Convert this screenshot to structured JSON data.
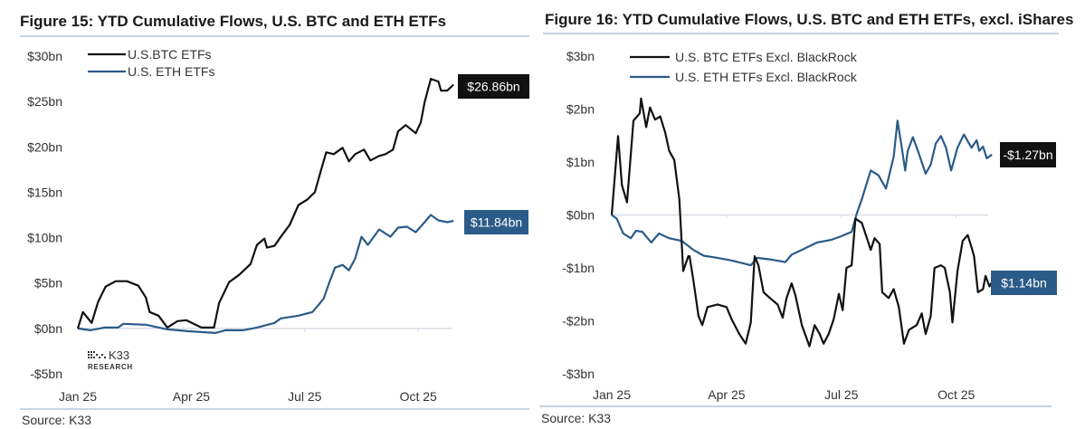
{
  "colors": {
    "btc": "#111111",
    "eth": "#2b5b88",
    "rule": "#8fa9c4",
    "zero": "#d9dee4"
  },
  "logo_text": "K33 RESEARCH",
  "chart_data": [
    {
      "type": "line",
      "title": "Figure 15: YTD Cumulative Flows, U.S. BTC and ETH ETFs",
      "source": "Source: K33",
      "ylim": [
        -5,
        30
      ],
      "yticks": [
        30,
        25,
        20,
        15,
        10,
        5,
        0,
        -5
      ],
      "ytick_labels": [
        "$30bn",
        "$25bn",
        "$20bn",
        "$15bn",
        "$10bn",
        "$5bn",
        "$0bn",
        "-$5bn"
      ],
      "xticks": [
        "2025-01-01",
        "2025-04-01",
        "2025-07-01",
        "2025-10-01"
      ],
      "xtick_labels": [
        "Jan 25",
        "Apr 25",
        "Jul 25",
        "Oct 25"
      ],
      "grid": false,
      "legend": "top-left",
      "series": [
        {
          "name": "U.S.BTC ETFs",
          "color": "#111111",
          "end_label": "$26.86bn",
          "x": [
            "2025-01-01",
            "2025-01-05",
            "2025-01-12",
            "2025-01-17",
            "2025-01-23",
            "2025-02-01",
            "2025-02-10",
            "2025-02-19",
            "2025-02-25",
            "2025-02-28",
            "2025-03-05",
            "2025-03-12",
            "2025-03-20",
            "2025-03-27",
            "2025-04-09",
            "2025-04-19",
            "2025-04-23",
            "2025-05-01",
            "2025-05-09",
            "2025-05-18",
            "2025-05-23",
            "2025-05-29",
            "2025-06-01",
            "2025-06-07",
            "2025-06-12",
            "2025-06-19",
            "2025-06-26",
            "2025-07-03",
            "2025-07-09",
            "2025-07-13",
            "2025-07-18",
            "2025-07-24",
            "2025-08-01",
            "2025-08-06",
            "2025-08-11",
            "2025-08-18",
            "2025-08-23",
            "2025-08-30",
            "2025-09-05",
            "2025-09-11",
            "2025-09-15",
            "2025-09-21",
            "2025-09-29",
            "2025-10-03",
            "2025-10-06",
            "2025-10-11",
            "2025-10-17",
            "2025-10-19",
            "2025-10-24",
            "2025-10-29"
          ],
          "y": [
            0,
            1.8,
            0.6,
            2.9,
            4.6,
            5.2,
            5.2,
            4.7,
            3.4,
            1.8,
            1.4,
            0.1,
            0.8,
            0.9,
            0.1,
            0.1,
            2.8,
            5.1,
            5.9,
            7.1,
            9.2,
            9.9,
            8.9,
            9.1,
            10.1,
            11.4,
            13.6,
            14.2,
            15.0,
            17.0,
            19.4,
            19.2,
            19.9,
            18.4,
            19.2,
            19.7,
            18.5,
            19.0,
            19.2,
            19.7,
            21.7,
            22.4,
            21.5,
            22.7,
            24.9,
            27.5,
            27.2,
            26.2,
            26.2,
            26.86
          ]
        },
        {
          "name": "U.S. ETH ETFs",
          "color": "#2b5b88",
          "end_label": "$11.84bn",
          "x": [
            "2025-01-01",
            "2025-01-11",
            "2025-01-22",
            "2025-02-03",
            "2025-02-07",
            "2025-02-25",
            "2025-03-12",
            "2025-03-28",
            "2025-04-20",
            "2025-04-28",
            "2025-05-12",
            "2025-05-23",
            "2025-06-07",
            "2025-06-12",
            "2025-06-26",
            "2025-07-07",
            "2025-07-12",
            "2025-07-16",
            "2025-07-20",
            "2025-07-25",
            "2025-08-01",
            "2025-08-06",
            "2025-08-11",
            "2025-08-16",
            "2025-08-21",
            "2025-08-30",
            "2025-09-09",
            "2025-09-15",
            "2025-09-22",
            "2025-09-29",
            "2025-10-06",
            "2025-10-11",
            "2025-10-17",
            "2025-10-24",
            "2025-10-29"
          ],
          "y": [
            0,
            -0.2,
            0.1,
            0.1,
            0.5,
            0.4,
            -0.1,
            -0.3,
            -0.5,
            -0.2,
            -0.2,
            0.1,
            0.6,
            1.1,
            1.4,
            1.8,
            2.6,
            3.3,
            4.9,
            6.7,
            7.0,
            6.4,
            7.7,
            10.1,
            9.2,
            10.9,
            10.1,
            11.1,
            11.2,
            10.6,
            11.7,
            12.5,
            11.9,
            11.7,
            11.84
          ]
        }
      ]
    },
    {
      "type": "line",
      "title": "Figure 16: YTD Cumulative Flows, U.S. BTC and ETH ETFs, excl. iShares",
      "source": "Source: K33",
      "ylim": [
        -3,
        3
      ],
      "yticks": [
        3,
        2,
        1,
        0,
        -1,
        -2,
        -3
      ],
      "ytick_labels": [
        "$3bn",
        "$2bn",
        "$1bn",
        "$0bn",
        "-$1bn",
        "-$2bn",
        "-$3bn"
      ],
      "xticks": [
        "2025-01-01",
        "2025-04-01",
        "2025-07-01",
        "2025-10-01"
      ],
      "xtick_labels": [
        "Jan 25",
        "Apr 25",
        "Jul 25",
        "Oct 25"
      ],
      "grid": false,
      "legend": "top-left",
      "series": [
        {
          "name": "U.S. BTC ETFs Excl. BlackRock",
          "color": "#111111",
          "end_label": "-$1.27bn",
          "x": [
            "2025-01-01",
            "2025-01-06",
            "2025-01-09",
            "2025-01-13",
            "2025-01-18",
            "2025-01-23",
            "2025-01-24",
            "2025-01-28",
            "2025-01-31",
            "2025-02-05",
            "2025-02-09",
            "2025-02-13",
            "2025-02-16",
            "2025-02-20",
            "2025-02-24",
            "2025-02-27",
            "2025-03-01",
            "2025-03-02",
            "2025-03-05",
            "2025-03-09",
            "2025-03-12",
            "2025-03-16",
            "2025-03-24",
            "2025-04-01",
            "2025-04-05",
            "2025-04-11",
            "2025-04-16",
            "2025-04-20",
            "2025-04-23",
            "2025-04-26",
            "2025-04-30",
            "2025-05-05",
            "2025-05-11",
            "2025-05-15",
            "2025-05-18",
            "2025-05-22",
            "2025-05-25",
            "2025-05-30",
            "2025-06-06",
            "2025-06-10",
            "2025-06-14",
            "2025-06-17",
            "2025-06-21",
            "2025-06-25",
            "2025-06-29",
            "2025-07-02",
            "2025-07-05",
            "2025-07-09",
            "2025-07-12",
            "2025-07-17",
            "2025-07-21",
            "2025-07-24",
            "2025-07-27",
            "2025-07-31",
            "2025-08-03",
            "2025-08-08",
            "2025-08-12",
            "2025-08-16",
            "2025-08-20",
            "2025-08-24",
            "2025-08-30",
            "2025-09-04",
            "2025-09-07",
            "2025-09-11",
            "2025-09-14",
            "2025-09-19",
            "2025-09-22",
            "2025-09-26",
            "2025-09-28",
            "2025-10-02",
            "2025-10-06",
            "2025-10-10",
            "2025-10-13",
            "2025-10-15",
            "2025-10-18",
            "2025-10-22",
            "2025-10-24",
            "2025-10-27",
            "2025-10-29"
          ],
          "y": [
            0,
            1.49,
            0.56,
            0.24,
            1.78,
            1.92,
            2.2,
            1.66,
            2.03,
            1.8,
            1.86,
            1.55,
            1.21,
            1.04,
            0.3,
            -1.06,
            -0.78,
            -0.78,
            -1.23,
            -1.91,
            -2.08,
            -1.74,
            -1.69,
            -1.74,
            -1.97,
            -2.25,
            -2.43,
            -2.03,
            -0.78,
            -0.95,
            -1.46,
            -1.57,
            -1.69,
            -1.94,
            -1.57,
            -1.29,
            -1.52,
            -2.08,
            -2.48,
            -2.08,
            -2.25,
            -2.43,
            -2.25,
            -1.97,
            -1.49,
            -1.8,
            -1.0,
            -0.95,
            -0.07,
            -0.15,
            -0.44,
            -0.66,
            -0.44,
            -0.55,
            -1.46,
            -1.57,
            -1.4,
            -1.74,
            -2.43,
            -2.17,
            -2.08,
            -1.86,
            -2.25,
            -1.91,
            -1.0,
            -0.95,
            -1.0,
            -1.46,
            -2.03,
            -1.06,
            -0.49,
            -0.38,
            -0.61,
            -0.78,
            -1.46,
            -1.4,
            -1.15,
            -1.35,
            -1.27
          ]
        },
        {
          "name": "U.S. ETH ETFs Excl. BlackRock",
          "color": "#2b5b88",
          "end_label": "$1.14bn",
          "x": [
            "2025-01-01",
            "2025-01-05",
            "2025-01-10",
            "2025-01-16",
            "2025-01-20",
            "2025-01-25",
            "2025-02-02",
            "2025-02-08",
            "2025-02-16",
            "2025-02-26",
            "2025-03-05",
            "2025-03-13",
            "2025-03-24",
            "2025-04-05",
            "2025-04-20",
            "2025-04-25",
            "2025-05-05",
            "2025-05-17",
            "2025-05-22",
            "2025-05-30",
            "2025-06-12",
            "2025-06-23",
            "2025-06-30",
            "2025-07-09",
            "2025-07-13",
            "2025-07-17",
            "2025-07-24",
            "2025-07-30",
            "2025-08-06",
            "2025-08-12",
            "2025-08-15",
            "2025-08-18",
            "2025-08-21",
            "2025-08-23",
            "2025-08-27",
            "2025-09-01",
            "2025-09-07",
            "2025-09-11",
            "2025-09-15",
            "2025-09-19",
            "2025-09-23",
            "2025-09-27",
            "2025-10-02",
            "2025-10-07",
            "2025-10-13",
            "2025-10-17",
            "2025-10-19",
            "2025-10-22",
            "2025-10-25",
            "2025-10-29"
          ],
          "y": [
            0,
            -0.07,
            -0.35,
            -0.44,
            -0.3,
            -0.32,
            -0.52,
            -0.35,
            -0.44,
            -0.49,
            -0.66,
            -0.77,
            -0.81,
            -0.86,
            -0.95,
            -0.81,
            -0.84,
            -0.89,
            -0.75,
            -0.66,
            -0.52,
            -0.47,
            -0.41,
            -0.32,
            0.02,
            0.3,
            0.84,
            0.75,
            0.5,
            1.1,
            1.78,
            1.32,
            0.84,
            1.21,
            1.47,
            1.21,
            0.78,
            0.95,
            1.35,
            1.49,
            1.27,
            0.84,
            1.27,
            1.52,
            1.27,
            1.41,
            1.21,
            1.29,
            1.07,
            1.14
          ]
        }
      ]
    }
  ]
}
